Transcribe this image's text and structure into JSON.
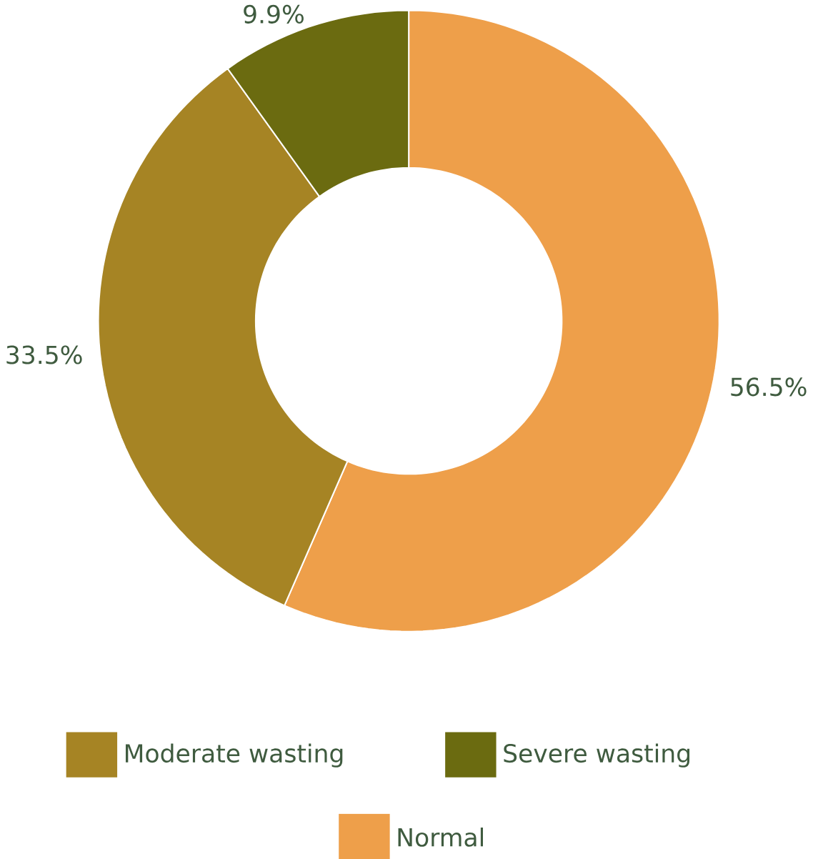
{
  "chart_data": {
    "type": "donut",
    "categories": [
      "Normal",
      "Moderate wasting",
      "Severe wasting"
    ],
    "values": [
      56.5,
      33.5,
      9.9
    ],
    "value_labels": [
      "56.5%",
      "33.5%",
      "9.9%"
    ],
    "colors": [
      "#ee9f4a",
      "#a68424",
      "#6b6b10"
    ],
    "legend": "bottom"
  }
}
